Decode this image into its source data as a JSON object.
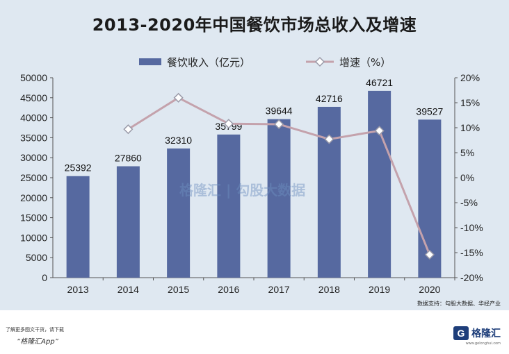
{
  "title": "2013-2020年中国餐饮市场总收入及增速",
  "watermark": "格隆汇 | 勾股大数据",
  "source": "数据支持：勾股大数据、华经产业",
  "footer": {
    "note": "了解更多图文干货，请下载",
    "app": "“格隆汇App”",
    "brand": "格隆汇",
    "brand_icon": "G",
    "brand_sub": "www.gelonghui.com"
  },
  "colors": {
    "bar": "#5669a0",
    "line": "#c4a2ac",
    "marker_fill": "#ffffff",
    "marker_stroke": "#9a9aa8",
    "background": "#dfe8f1"
  },
  "chart_data": {
    "type": "bar",
    "title": "2013-2020年中国餐饮市场总收入及增速",
    "categories": [
      "2013",
      "2014",
      "2015",
      "2016",
      "2017",
      "2018",
      "2019",
      "2020"
    ],
    "series": [
      {
        "name": "餐饮收入（亿元）",
        "type": "bar",
        "axis": "left",
        "values": [
          25392,
          27860,
          32310,
          35799,
          39644,
          42716,
          46721,
          39527
        ]
      },
      {
        "name": "增速（%）",
        "type": "line",
        "axis": "right",
        "values": [
          null,
          9.7,
          16.0,
          10.8,
          10.7,
          7.7,
          9.4,
          -15.4
        ]
      }
    ],
    "y_left": {
      "min": 0,
      "max": 50000,
      "ticks": [
        0,
        5000,
        10000,
        15000,
        20000,
        25000,
        30000,
        35000,
        40000,
        45000,
        50000
      ]
    },
    "y_right": {
      "min": -20,
      "max": 20,
      "ticks": [
        "-20%",
        "-15%",
        "-10%",
        "-5%",
        "0%",
        "5%",
        "10%",
        "15%",
        "20%"
      ]
    },
    "legend_position": "top-center",
    "grid": false
  }
}
